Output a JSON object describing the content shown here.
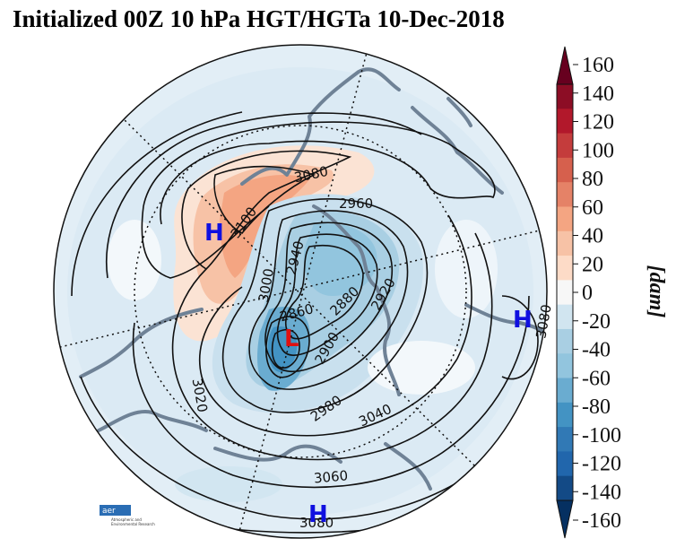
{
  "title": "Initialized 00Z 10 hPa HGT/HGTa 10-Dec-2018",
  "colorbar": {
    "ticks": [
      "160",
      "140",
      "120",
      "100",
      "80",
      "60",
      "40",
      "20",
      "0",
      "-20",
      "-40",
      "-60",
      "-80",
      "-100",
      "-120",
      "-140",
      "-160"
    ],
    "unit": "[dam]",
    "colors": [
      "#67001f",
      "#8c0d25",
      "#b2182b",
      "#c43c3c",
      "#d6604d",
      "#e58267",
      "#f4a582",
      "#f7c2a6",
      "#fddbc7",
      "#f7f7f7",
      "#d1e5f0",
      "#a9cfe3",
      "#92c5de",
      "#6aacd0",
      "#4393c3",
      "#3179b5",
      "#2166ac",
      "#134a86",
      "#053061"
    ]
  },
  "contour_labels": [
    "3080",
    "3100",
    "2960",
    "2940",
    "3000",
    "2860",
    "2880",
    "2920",
    "2900",
    "3020",
    "2980",
    "3040",
    "3060",
    "3080",
    "3080"
  ],
  "markers": [
    {
      "text": "H",
      "color": "#1010e0"
    },
    {
      "text": "L",
      "color": "#e01010"
    },
    {
      "text": "H",
      "color": "#1010e0"
    },
    {
      "text": "H",
      "color": "#1010e0"
    }
  ],
  "logo": {
    "name": "aer",
    "line1": "Atmospheric and",
    "line2": "Environmental Research"
  }
}
